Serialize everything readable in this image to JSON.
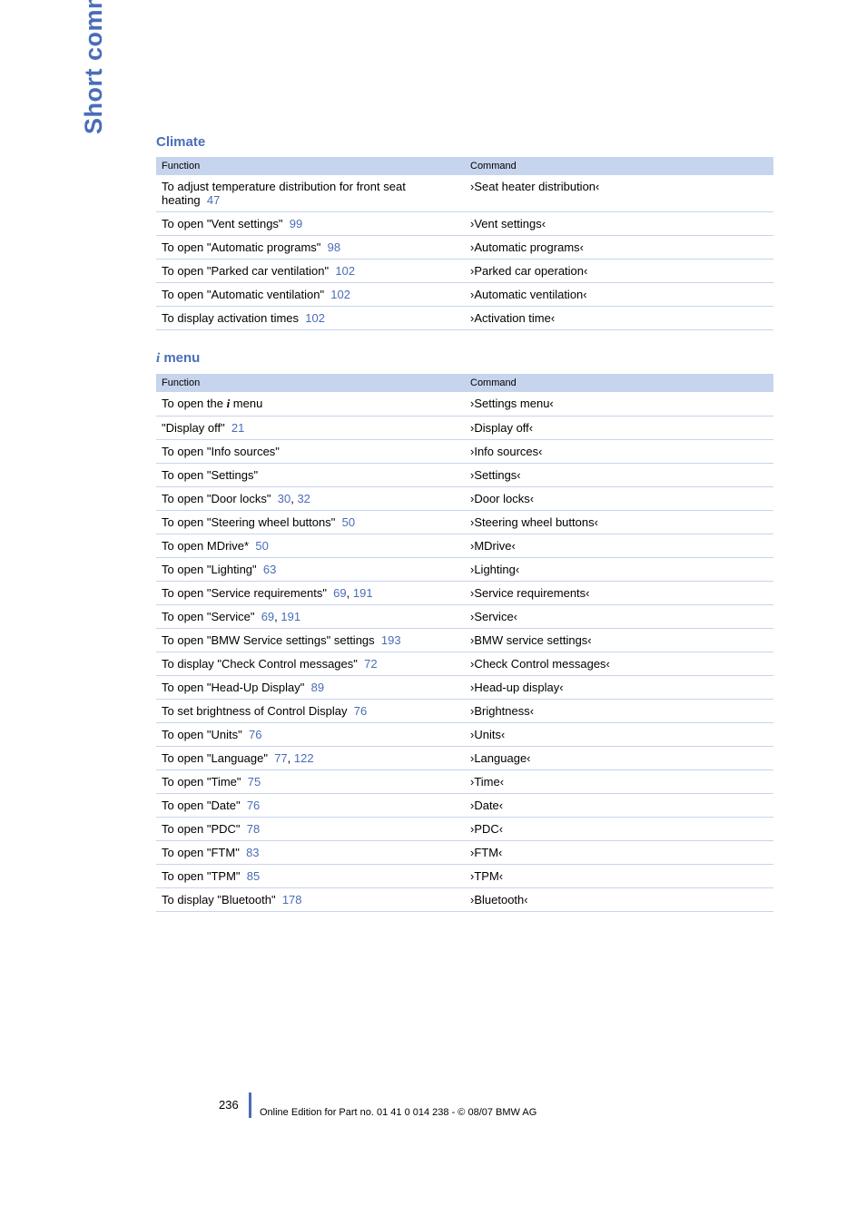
{
  "sidebar_title": "Short commands of voice command system",
  "climate": {
    "heading": "Climate",
    "header_function": "Function",
    "header_command": "Command",
    "rows": [
      {
        "func_a": "To adjust temperature distribution for front seat heating",
        "page": "47",
        "cmd": "›Seat heater distribution‹"
      },
      {
        "func_a": "To open \"Vent settings\"",
        "page": "99",
        "cmd": "›Vent settings‹"
      },
      {
        "func_a": "To open \"Automatic programs\"",
        "page": "98",
        "cmd": "›Automatic programs‹"
      },
      {
        "func_a": "To open \"Parked car ventilation\"",
        "page": "102",
        "cmd": "›Parked car operation‹"
      },
      {
        "func_a": "To open \"Automatic ventilation\"",
        "page": "102",
        "cmd": "›Automatic ventilation‹"
      },
      {
        "func_a": "To display activation times",
        "page": "102",
        "cmd": "›Activation time‹"
      }
    ]
  },
  "imenu": {
    "heading": " menu",
    "header_function": "Function",
    "header_command": "Command",
    "rows": [
      {
        "func_a": "To open the ",
        "info_i": true,
        "func_b": " menu",
        "page": "",
        "cmd": "›Settings menu‹"
      },
      {
        "func_a": "\"Display off\"",
        "page": "21",
        "cmd": "›Display off‹"
      },
      {
        "func_a": "To open \"Info sources\"",
        "page": "",
        "cmd": "›Info sources‹"
      },
      {
        "func_a": "To open \"Settings\"",
        "page": "",
        "cmd": "›Settings‹"
      },
      {
        "func_a": "To open \"Door locks\"",
        "page": "30",
        "page2": "32",
        "cmd": "›Door locks‹"
      },
      {
        "func_a": "To open \"Steering wheel buttons\"",
        "page": "50",
        "cmd": "›Steering wheel buttons‹"
      },
      {
        "func_a": "To open MDrive",
        "star": true,
        "page": "50",
        "cmd": "›MDrive‹"
      },
      {
        "func_a": "To open \"Lighting\"",
        "page": "63",
        "cmd": "›Lighting‹"
      },
      {
        "func_a": "To open \"Service requirements\"",
        "page": "69",
        "page2": "191",
        "cmd": "›Service requirements‹"
      },
      {
        "func_a": "To open \"Service\"",
        "page": "69",
        "page2": "191",
        "cmd": "›Service‹"
      },
      {
        "func_a": "To open \"BMW Service settings\" settings",
        "page": "193",
        "cmd": "›BMW service settings‹"
      },
      {
        "func_a": "To display \"Check Control messages\"",
        "page": "72",
        "cmd": "›Check Control messages‹"
      },
      {
        "func_a": "To open \"Head-Up Display\"",
        "page": "89",
        "cmd": "›Head-up display‹"
      },
      {
        "func_a": "To set brightness of Control Display",
        "page": "76",
        "cmd": "›Brightness‹"
      },
      {
        "func_a": "To open \"Units\"",
        "page": "76",
        "cmd": "›Units‹"
      },
      {
        "func_a": "To open \"Language\"",
        "page": "77",
        "page2": "122",
        "cmd": "›Language‹"
      },
      {
        "func_a": "To open \"Time\"",
        "page": "75",
        "cmd": "›Time‹"
      },
      {
        "func_a": "To open \"Date\"",
        "page": "76",
        "cmd": "›Date‹"
      },
      {
        "func_a": "To open \"PDC\"",
        "page": "78",
        "cmd": "›PDC‹"
      },
      {
        "func_a": "To open \"FTM\"",
        "page": "83",
        "cmd": "›FTM‹"
      },
      {
        "func_a": "To open \"TPM\"",
        "page": "85",
        "cmd": "›TPM‹"
      },
      {
        "func_a": "To display \"Bluetooth\"",
        "page": "178",
        "cmd": "›Bluetooth‹"
      }
    ]
  },
  "page_number": "236",
  "footer": "Online Edition for Part no. 01 41 0 014 238 - © 08/07 BMW AG"
}
